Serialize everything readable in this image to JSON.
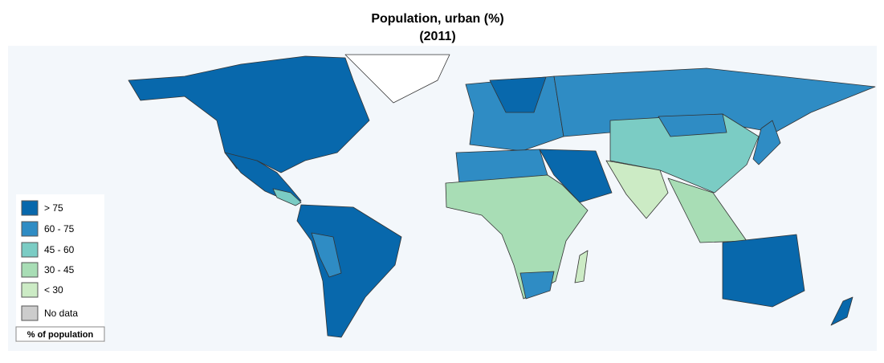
{
  "title": "Population, urban (%)",
  "subtitle": "(2011)",
  "legend": {
    "items": [
      {
        "label": "> 75",
        "color": "#0868ac"
      },
      {
        "label": "60 - 75",
        "color": "#2f8cc4"
      },
      {
        "label": "45 - 60",
        "color": "#7bccc4"
      },
      {
        "label": "30 - 45",
        "color": "#a8ddb5"
      },
      {
        "label": "< 30",
        "color": "#ccebc5"
      }
    ],
    "no_data": {
      "label": "No data",
      "color": "#cccccc"
    },
    "caption": "% of population"
  }
}
